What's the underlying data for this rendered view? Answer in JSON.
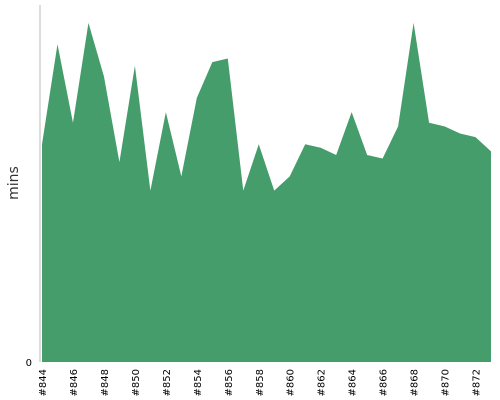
{
  "chart_data": {
    "type": "area",
    "xlabel": "",
    "ylabel": "mins",
    "y_tick_labels": [
      "0"
    ],
    "ylim": [
      0,
      100
    ],
    "grid": false,
    "colors": {
      "area": "#459d6b",
      "axis": "#bbbbbb",
      "text": "#000000"
    },
    "x": [
      "#844",
      "#845",
      "#846",
      "#847",
      "#848",
      "#849",
      "#850",
      "#851",
      "#852",
      "#853",
      "#854",
      "#855",
      "#856",
      "#857",
      "#858",
      "#859",
      "#860",
      "#861",
      "#862",
      "#863",
      "#864",
      "#865",
      "#866",
      "#867",
      "#868",
      "#869",
      "#870",
      "#871",
      "#872",
      "#873"
    ],
    "x_tick_labels": [
      "#844",
      "#846",
      "#848",
      "#850",
      "#852",
      "#854",
      "#856",
      "#858",
      "#860",
      "#862",
      "#864",
      "#866",
      "#868",
      "#870",
      "#872"
    ],
    "series": [
      {
        "values": [
          61,
          89,
          67,
          95,
          80,
          56,
          83,
          48,
          70,
          52,
          74,
          84,
          85,
          48,
          61,
          48,
          52,
          61,
          60,
          58,
          70,
          58,
          57,
          66,
          95,
          67,
          66,
          64,
          63,
          59
        ]
      }
    ]
  }
}
